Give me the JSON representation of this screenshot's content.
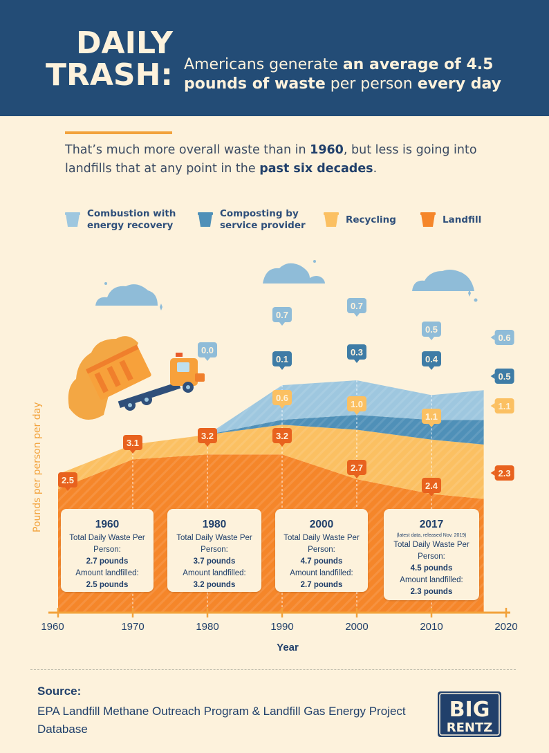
{
  "header": {
    "title_line1": "DAILY",
    "title_line2": "TRASH:",
    "subtitle_part1": "Americans generate ",
    "subtitle_bold1": "an average of 4.5 pounds of waste",
    "subtitle_part2": " per person ",
    "subtitle_bold2": "every day"
  },
  "intro": {
    "part1": "That’s much more overall waste than in ",
    "bold1": "1960",
    "part2": ", but less is going into landfills that at any point in the ",
    "bold2": "past six decades",
    "part3": "."
  },
  "legend": [
    {
      "label_line1": "Combustion with",
      "label_line2": "energy recovery",
      "color": "#9ec7df"
    },
    {
      "label_line1": "Composting by",
      "label_line2": "service provider",
      "color": "#4f90b8"
    },
    {
      "label_line1": "Recycling",
      "label_line2": "",
      "color": "#fbc062"
    },
    {
      "label_line1": "Landfill",
      "label_line2": "",
      "color": "#f5862a"
    }
  ],
  "chart_data": {
    "type": "area",
    "stacked": true,
    "xlabel": "Year",
    "ylabel": "Pounds per person per day",
    "xlim": [
      1960,
      2020
    ],
    "x_ticks": [
      1960,
      1970,
      1980,
      1990,
      2000,
      2010,
      2020
    ],
    "x": [
      1960,
      1970,
      1980,
      1990,
      2000,
      2010,
      2017
    ],
    "series": [
      {
        "name": "Landfill",
        "color": "#f5862a",
        "values": [
          2.5,
          3.1,
          3.2,
          3.2,
          2.7,
          2.4,
          2.3
        ]
      },
      {
        "name": "Recycling",
        "color": "#fbc062",
        "values": [
          0.3,
          0.3,
          0.4,
          0.6,
          1.0,
          1.1,
          1.1
        ]
      },
      {
        "name": "Composting by service provider",
        "color": "#4f90b8",
        "values": [
          0.0,
          0.0,
          0.0,
          0.1,
          0.3,
          0.4,
          0.5
        ]
      },
      {
        "name": "Combustion with energy recovery",
        "color": "#9ec7df",
        "values": [
          0.0,
          0.0,
          0.0,
          0.7,
          0.7,
          0.5,
          0.6
        ]
      }
    ],
    "data_labels": [
      {
        "series": "Landfill",
        "x": 1960,
        "text": "2.5"
      },
      {
        "series": "Landfill",
        "x": 1970,
        "text": "3.1"
      },
      {
        "series": "Landfill",
        "x": 1980,
        "text": "3.2"
      },
      {
        "series": "Landfill",
        "x": 1990,
        "text": "3.2"
      },
      {
        "series": "Landfill",
        "x": 2000,
        "text": "2.7"
      },
      {
        "series": "Landfill",
        "x": 2010,
        "text": "2.4"
      },
      {
        "series": "Landfill",
        "x": 2017,
        "text": "2.3"
      },
      {
        "series": "Recycling",
        "x": 1990,
        "text": "0.6"
      },
      {
        "series": "Recycling",
        "x": 2000,
        "text": "1.0"
      },
      {
        "series": "Recycling",
        "x": 2010,
        "text": "1.1"
      },
      {
        "series": "Recycling",
        "x": 2017,
        "text": "1.1"
      },
      {
        "series": "Composting by service provider",
        "x": 1990,
        "text": "0.1"
      },
      {
        "series": "Composting by service provider",
        "x": 2000,
        "text": "0.3"
      },
      {
        "series": "Composting by service provider",
        "x": 2010,
        "text": "0.4"
      },
      {
        "series": "Composting by service provider",
        "x": 2017,
        "text": "0.5"
      },
      {
        "series": "Combustion with energy recovery",
        "x": 1980,
        "text": "0.0"
      },
      {
        "series": "Combustion with energy recovery",
        "x": 1990,
        "text": "0.7"
      },
      {
        "series": "Combustion with energy recovery",
        "x": 2000,
        "text": "0.7"
      },
      {
        "series": "Combustion with energy recovery",
        "x": 2010,
        "text": "0.5"
      },
      {
        "series": "Combustion with energy recovery",
        "x": 2017,
        "text": "0.6"
      }
    ],
    "annotations": [
      {
        "year": "1960",
        "total": "2.7 pounds",
        "landfilled": "2.5 pounds",
        "note": ""
      },
      {
        "year": "1980",
        "total": "3.7 pounds",
        "landfilled": "3.2 pounds",
        "note": ""
      },
      {
        "year": "2000",
        "total": "4.7 pounds",
        "landfilled": "2.7 pounds",
        "note": ""
      },
      {
        "year": "2017",
        "total": "4.5 pounds",
        "landfilled": "2.3 pounds",
        "note": "(latest data, released Nov. 2019)"
      }
    ],
    "annotation_text": {
      "total_label": "Total Daily Waste Per Person:",
      "landfilled_label": "Amount landfilled:"
    }
  },
  "source": {
    "heading": "Source:",
    "text": "EPA Landfill Methane Outreach Program & Landfill Gas Energy Project Database"
  },
  "logo": {
    "line1": "BIG",
    "line2": "RENTZ"
  }
}
